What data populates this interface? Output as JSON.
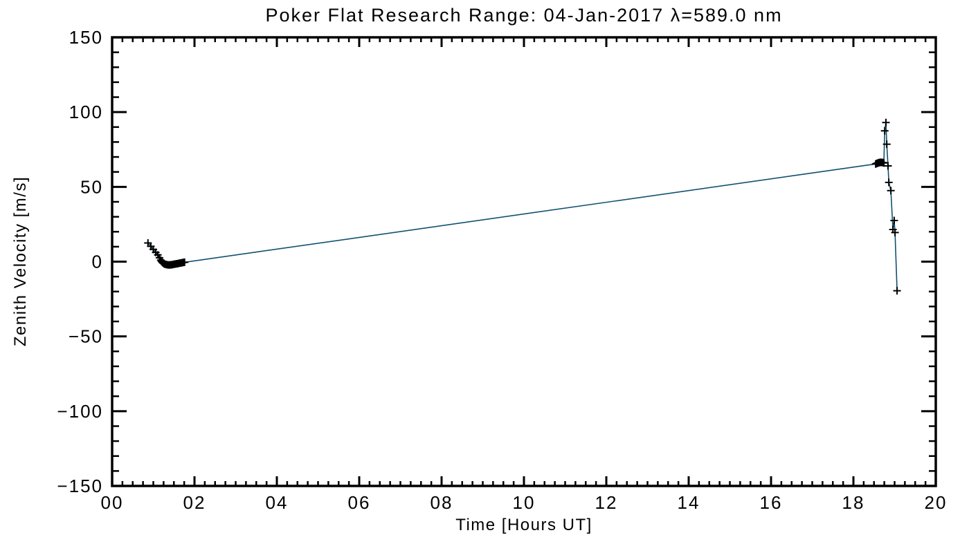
{
  "window": {
    "background": "#ffffff"
  },
  "chart_data": {
    "type": "line",
    "title": "Poker Flat Research Range: 04-Jan-2017 λ=589.0 nm",
    "xlabel": "Time [Hours UT]",
    "ylabel": "Zenith Velocity [m/s]",
    "xlim": [
      0,
      20
    ],
    "ylim": [
      -150,
      150
    ],
    "grid": false,
    "legend": "none",
    "frame_color": "#000000",
    "line_color": "#11506f",
    "marker": "plus",
    "marker_color": "#000000",
    "x_major_ticks": [
      0,
      2,
      4,
      6,
      8,
      10,
      12,
      14,
      16,
      18,
      20
    ],
    "x_tick_labels": [
      "00",
      "02",
      "04",
      "06",
      "08",
      "10",
      "12",
      "14",
      "16",
      "18",
      "20"
    ],
    "x_minor_step": 0.25,
    "y_major_ticks": [
      -150,
      -100,
      -50,
      0,
      50,
      100,
      150
    ],
    "y_tick_labels": [
      "−150",
      "−100",
      "−50",
      "0",
      "50",
      "100",
      "150"
    ],
    "y_minor_step": 10,
    "series": [
      {
        "name": "zenith velocity",
        "points": [
          [
            0.87,
            12.5
          ],
          [
            0.94,
            10.2
          ],
          [
            1.0,
            8.2
          ],
          [
            1.06,
            6.2
          ],
          [
            1.11,
            4.5
          ],
          [
            1.15,
            2.6
          ],
          [
            1.18,
            1.0
          ],
          [
            1.2,
            0.1
          ],
          [
            1.22,
            -0.5
          ],
          [
            1.24,
            -1.0
          ],
          [
            1.26,
            -1.4
          ],
          [
            1.28,
            -1.7
          ],
          [
            1.31,
            -1.9
          ],
          [
            1.34,
            -2.1
          ],
          [
            1.37,
            -2.2
          ],
          [
            1.4,
            -2.2
          ],
          [
            1.43,
            -2.1
          ],
          [
            1.46,
            -2.0
          ],
          [
            1.49,
            -1.8
          ],
          [
            1.52,
            -1.7
          ],
          [
            1.55,
            -1.5
          ],
          [
            1.58,
            -1.4
          ],
          [
            1.61,
            -1.2
          ],
          [
            1.64,
            -1.0
          ],
          [
            1.67,
            -0.9
          ],
          [
            1.7,
            -0.7
          ],
          [
            1.73,
            -0.5
          ],
          [
            1.76,
            -0.4
          ],
          [
            18.54,
            65.3
          ],
          [
            18.56,
            65.6
          ],
          [
            18.58,
            65.8
          ],
          [
            18.6,
            66.0
          ],
          [
            18.62,
            66.2
          ],
          [
            18.64,
            66.3
          ],
          [
            18.66,
            66.4
          ],
          [
            18.68,
            66.4
          ],
          [
            18.7,
            66.3
          ],
          [
            18.72,
            66.2
          ],
          [
            18.74,
            66.0
          ],
          [
            18.76,
            87.5
          ],
          [
            18.79,
            93.0
          ],
          [
            18.81,
            78.5
          ],
          [
            18.84,
            64.0
          ],
          [
            18.86,
            53.0
          ],
          [
            18.91,
            47.5
          ],
          [
            18.96,
            21.5
          ],
          [
            18.99,
            27.5
          ],
          [
            19.01,
            19.5
          ],
          [
            19.06,
            -19.5
          ]
        ]
      }
    ]
  }
}
